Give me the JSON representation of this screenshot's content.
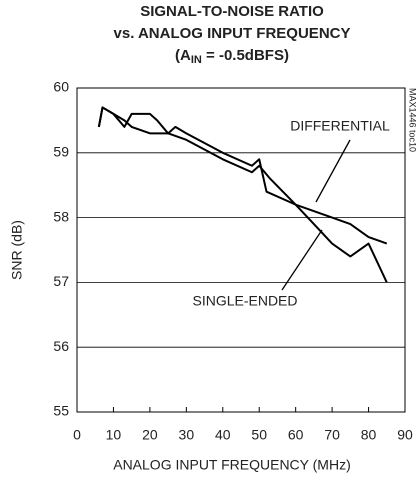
{
  "chart_data": {
    "type": "line",
    "title": [
      "SIGNAL-TO-NOISE RATIO",
      "vs. ANALOG INPUT FREQUENCY"
    ],
    "title_line3": {
      "prefix": "(A",
      "subscript": "IN",
      "suffix": " = -0.5dBFS)"
    },
    "x_label": "ANALOG INPUT FREQUENCY (MHz)",
    "y_label": "SNR (dB)",
    "side_note": "MAX1446 toc10",
    "annotations": [
      "DIFFERENTIAL",
      "SINGLE-ENDED"
    ],
    "xlim": [
      0,
      90
    ],
    "xticks": [
      0,
      10,
      20,
      30,
      40,
      50,
      60,
      70,
      80,
      90
    ],
    "ylim": [
      55,
      60
    ],
    "yticks": [
      55,
      56,
      57,
      58,
      59,
      60
    ],
    "grid": true,
    "series": [
      {
        "name": "DIFFERENTIAL",
        "color": "#000000",
        "x": [
          6,
          7,
          10,
          13,
          15,
          20,
          25,
          27,
          30,
          40,
          48,
          50,
          52,
          60,
          70,
          75,
          80,
          85
        ],
        "values": [
          59.4,
          59.7,
          59.6,
          59.5,
          59.4,
          59.3,
          59.3,
          59.4,
          59.3,
          59.0,
          58.8,
          58.9,
          58.4,
          58.2,
          58.0,
          57.9,
          57.7,
          57.6
        ]
      },
      {
        "name": "SINGLE-ENDED",
        "color": "#000000",
        "x": [
          6,
          7,
          10,
          13,
          15,
          20,
          22,
          25,
          30,
          40,
          48,
          50,
          53,
          60,
          65,
          70,
          75,
          80,
          85
        ],
        "values": [
          59.4,
          59.7,
          59.6,
          59.4,
          59.6,
          59.6,
          59.5,
          59.3,
          59.2,
          58.9,
          58.7,
          58.8,
          58.6,
          58.2,
          57.9,
          57.6,
          57.4,
          57.6,
          57.0
        ]
      }
    ]
  }
}
